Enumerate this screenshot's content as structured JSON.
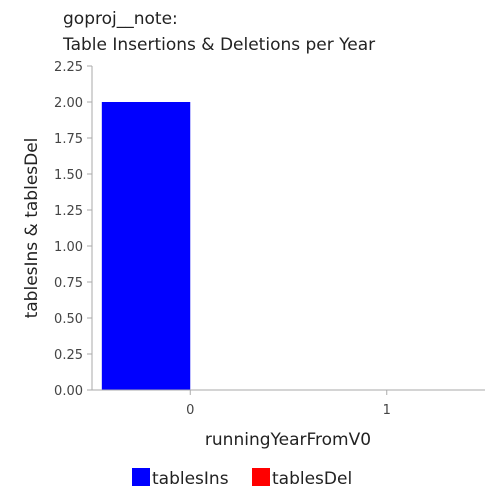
{
  "chart_data": {
    "type": "bar",
    "title_lines": [
      "goproj__note:",
      "Table Insertions & Deletions per Year"
    ],
    "xlabel": "runningYearFromV0",
    "ylabel": "tablesIns & tablesDel",
    "categories": [
      "0",
      "1"
    ],
    "series": [
      {
        "name": "tablesIns",
        "color": "#0000ff",
        "values": [
          2.0,
          0.0
        ]
      },
      {
        "name": "tablesDel",
        "color": "#ff0000",
        "values": [
          0.0,
          0.0
        ]
      }
    ],
    "ylim": [
      0,
      2.25
    ],
    "yticks": [
      "0.00",
      "0.25",
      "0.50",
      "0.75",
      "1.00",
      "1.25",
      "1.50",
      "1.75",
      "2.00",
      "2.25"
    ],
    "grid": false,
    "legend_position": "bottom"
  }
}
